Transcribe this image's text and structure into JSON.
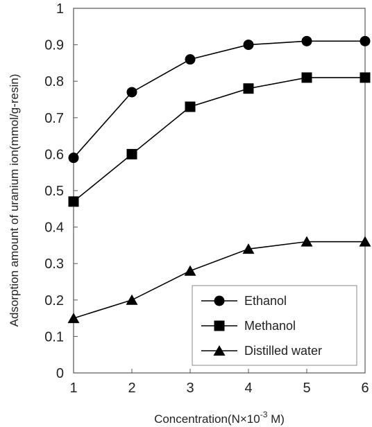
{
  "chart_data": {
    "type": "line",
    "title": "",
    "xlabel": "Concentration(N×10",
    "xlabel_sup": "-3",
    "xlabel_suffix": " M)",
    "ylabel": "Adsorption amount of uranium ion(mmol/g-resin)",
    "x": [
      1,
      2,
      3,
      4,
      5,
      6
    ],
    "xlim": [
      1,
      6
    ],
    "ylim": [
      0,
      1
    ],
    "xticks": [
      "1",
      "2",
      "3",
      "4",
      "5",
      "6"
    ],
    "yticks": [
      "0",
      "0.1",
      "0.2",
      "0.3",
      "0.4",
      "0.5",
      "0.6",
      "0.7",
      "0.8",
      "0.9",
      "1"
    ],
    "grid": false,
    "legend_position": "bottom-right",
    "series": [
      {
        "name": "Ethanol",
        "marker": "circle",
        "color": "#000000",
        "values": [
          0.59,
          0.77,
          0.86,
          0.9,
          0.91,
          0.91
        ]
      },
      {
        "name": "Methanol",
        "marker": "square",
        "color": "#000000",
        "values": [
          0.47,
          0.6,
          0.73,
          0.78,
          0.81,
          0.81
        ]
      },
      {
        "name": "Distilled water",
        "marker": "triangle",
        "color": "#000000",
        "values": [
          0.15,
          0.2,
          0.28,
          0.34,
          0.36,
          0.36
        ]
      }
    ]
  }
}
